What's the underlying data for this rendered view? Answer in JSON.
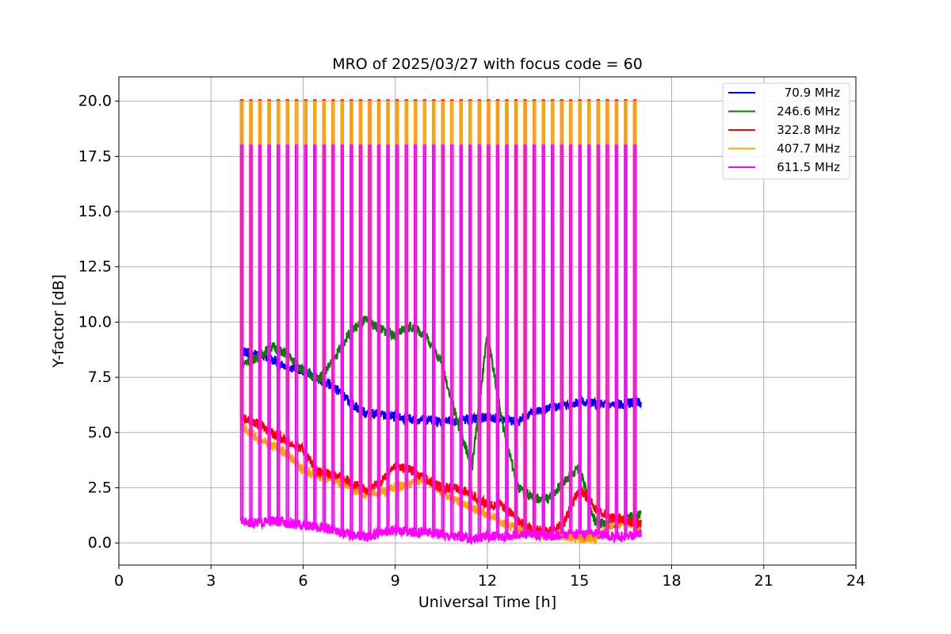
{
  "chart_data": {
    "type": "line",
    "title": "MRO of 2025/03/27 with focus code = 60",
    "xlabel": "Universal Time [h]",
    "ylabel": "Y-factor [dB]",
    "xlim": [
      0,
      24
    ],
    "ylim": [
      -1.0,
      21.1
    ],
    "x_ticks": [
      0,
      3,
      6,
      9,
      12,
      15,
      18,
      21,
      24
    ],
    "x_tick_labels": [
      "0",
      "3",
      "6",
      "9",
      "12",
      "15",
      "18",
      "21",
      "24"
    ],
    "y_ticks": [
      0.0,
      2.5,
      5.0,
      7.5,
      10.0,
      12.5,
      15.0,
      17.5,
      20.0
    ],
    "y_tick_labels": [
      "0.0",
      "2.5",
      "5.0",
      "7.5",
      "10.0",
      "12.5",
      "15.0",
      "17.5",
      "20.0"
    ],
    "grid": true,
    "legend_position": "top-right",
    "calibration_spikes": {
      "start": 4.0,
      "end": 16.8,
      "count": 44,
      "peak_407_7": 20.0,
      "peak_611_5": 18.0
    },
    "series": [
      {
        "name": " 70.9 MHz",
        "color": "#0000ff",
        "x": [
          4.0,
          4.5,
          5.0,
          5.5,
          6.0,
          6.5,
          7.0,
          7.5,
          8.0,
          8.5,
          9.0,
          9.5,
          10.0,
          10.5,
          11.0,
          11.5,
          12.0,
          12.5,
          13.0,
          13.5,
          14.0,
          14.5,
          15.0,
          15.5,
          16.0,
          16.5,
          17.0
        ],
        "values": [
          8.7,
          8.5,
          8.3,
          8.0,
          7.8,
          7.4,
          7.1,
          6.4,
          5.9,
          5.8,
          5.7,
          5.6,
          5.6,
          5.5,
          5.5,
          5.6,
          5.7,
          5.6,
          5.5,
          5.9,
          6.1,
          6.2,
          6.4,
          6.3,
          6.2,
          6.3,
          6.4
        ]
      },
      {
        "name": "246.6 MHz",
        "color": "#008000",
        "x": [
          4.0,
          4.5,
          5.0,
          5.5,
          6.0,
          6.5,
          7.0,
          7.5,
          8.0,
          8.5,
          9.0,
          9.5,
          10.0,
          10.5,
          11.0,
          11.5,
          12.0,
          12.5,
          13.0,
          13.5,
          14.0,
          14.5,
          15.0,
          15.5,
          16.0,
          16.5,
          17.0
        ],
        "values": [
          8.1,
          8.4,
          8.9,
          8.5,
          7.8,
          7.4,
          8.3,
          9.5,
          10.1,
          9.7,
          9.4,
          9.8,
          9.4,
          8.2,
          5.6,
          3.4,
          9.5,
          5.3,
          2.5,
          2.0,
          2.0,
          2.8,
          3.4,
          1.0,
          0.8,
          1.1,
          1.3
        ]
      },
      {
        "name": "322.8 MHz",
        "color": "#ff0000",
        "x": [
          4.0,
          4.5,
          5.0,
          5.5,
          6.0,
          6.5,
          7.0,
          7.5,
          8.0,
          8.5,
          9.0,
          9.5,
          10.0,
          10.5,
          11.0,
          11.5,
          12.0,
          12.5,
          13.0,
          13.5,
          14.0,
          14.5,
          15.0,
          15.5,
          16.0,
          16.5,
          17.0
        ],
        "values": [
          5.7,
          5.4,
          5.0,
          4.6,
          4.2,
          3.2,
          3.1,
          2.8,
          2.4,
          2.7,
          3.5,
          3.3,
          2.9,
          2.5,
          2.5,
          2.2,
          1.7,
          1.7,
          1.0,
          0.6,
          0.5,
          0.9,
          2.5,
          1.6,
          1.2,
          1.0,
          0.9
        ]
      },
      {
        "name": "407.7 MHz",
        "color": "#ffa500",
        "x": [
          4.0,
          4.5,
          5.0,
          5.5,
          6.0,
          6.5,
          7.0,
          7.5,
          8.0,
          8.5,
          9.0,
          9.5,
          10.0,
          10.5,
          11.0,
          11.5,
          12.0,
          12.5,
          13.0,
          13.5,
          14.0,
          14.5,
          15.0,
          15.5,
          16.0,
          16.5,
          17.0
        ],
        "values": [
          5.3,
          4.7,
          4.4,
          4.0,
          3.3,
          3.0,
          2.9,
          2.5,
          2.2,
          2.3,
          2.5,
          2.7,
          2.9,
          2.3,
          1.9,
          1.6,
          1.3,
          0.9,
          0.6,
          0.4,
          0.4,
          0.3,
          0.2,
          0.2,
          0.7,
          1.0,
          0.6
        ]
      },
      {
        "name": "611.5 MHz",
        "color": "#ff00ff",
        "x": [
          4.0,
          4.5,
          5.0,
          5.5,
          6.0,
          6.5,
          7.0,
          7.5,
          8.0,
          8.5,
          9.0,
          9.5,
          10.0,
          10.5,
          11.0,
          11.5,
          12.0,
          12.5,
          13.0,
          13.5,
          14.0,
          14.5,
          15.0,
          15.5,
          16.0,
          16.5,
          17.0
        ],
        "values": [
          1.0,
          0.9,
          1.0,
          0.9,
          0.8,
          0.7,
          0.6,
          0.4,
          0.3,
          0.4,
          0.6,
          0.5,
          0.5,
          0.4,
          0.3,
          0.2,
          0.3,
          0.3,
          0.4,
          0.4,
          0.3,
          0.4,
          0.4,
          0.4,
          0.3,
          0.3,
          0.4
        ]
      }
    ]
  }
}
